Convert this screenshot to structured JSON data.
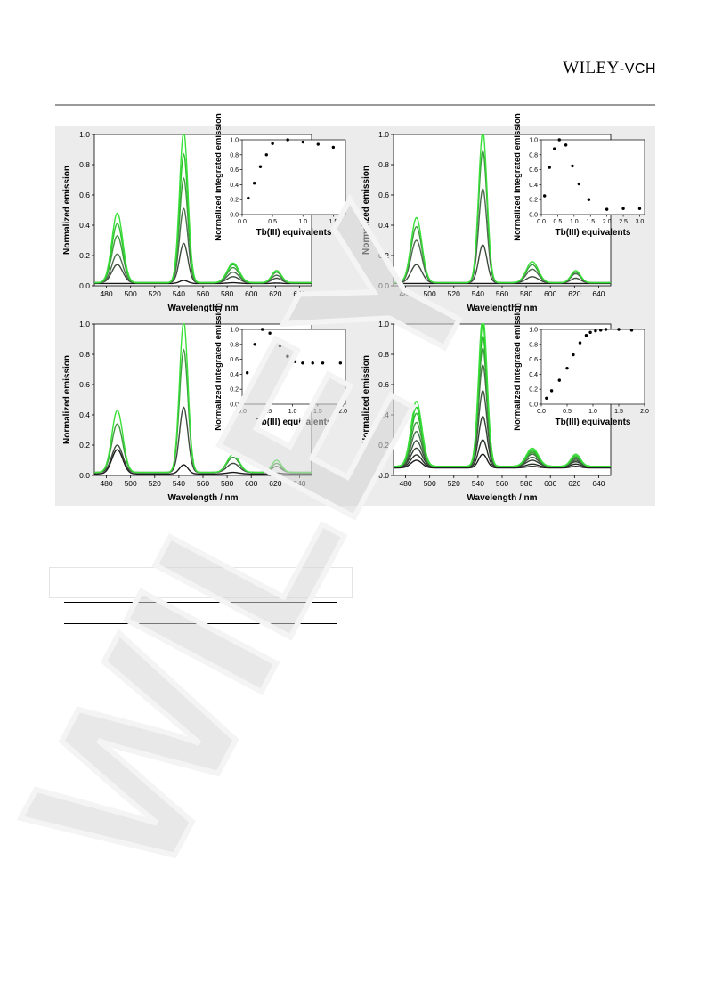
{
  "header": {
    "logo_main": "WILEY",
    "logo_suffix": "-VCH"
  },
  "watermark": {
    "text": "WILEY"
  },
  "figure": {
    "panels": [
      {
        "id": "a",
        "xlabel": "Wavelength / nm",
        "ylabel": "Normalized emission",
        "xlim": [
          470,
          650
        ],
        "xticks": [
          480,
          500,
          520,
          540,
          560,
          580,
          600,
          620,
          640
        ],
        "ylim": [
          0,
          1.0
        ],
        "yticks": [
          "0.0",
          "0.2",
          "0.4",
          "0.6",
          "0.8",
          "1.0"
        ],
        "inset": {
          "xlabel": "Tb(III) equivalents",
          "ylabel": "Normalized integrated emission",
          "xlim": [
            0,
            1.7
          ],
          "xticks": [
            "0.0",
            "0.5",
            "1.0",
            "1.5"
          ],
          "ylim": [
            0,
            1.0
          ],
          "yticks": [
            "0.0",
            "0.2",
            "0.4",
            "0.6",
            "0.8",
            "1.0"
          ]
        }
      },
      {
        "id": "b",
        "xlabel": "Wavelength / nm",
        "ylabel": "Normalized emission",
        "xlim": [
          470,
          650
        ],
        "xticks": [
          480,
          500,
          520,
          540,
          560,
          580,
          600,
          620,
          640
        ],
        "ylim": [
          0,
          1.0
        ],
        "yticks": [
          "0.0",
          "0.2",
          "0.4",
          "0.6",
          "0.8",
          "1.0"
        ],
        "inset": {
          "xlabel": "Tb(III) equivalents",
          "ylabel": "Normalized integrated emission",
          "xlim": [
            0,
            3.15
          ],
          "xticks": [
            "0.0",
            "0.5",
            "1.0",
            "1.5",
            "2.0",
            "2.5",
            "3.0"
          ],
          "ylim": [
            0,
            1.0
          ],
          "yticks": [
            "0.0",
            "0.2",
            "0.4",
            "0.6",
            "0.8",
            "1.0"
          ]
        }
      },
      {
        "id": "c",
        "xlabel": "Wavelength / nm",
        "ylabel": "Normalized emission",
        "xlim": [
          470,
          650
        ],
        "xticks": [
          480,
          500,
          520,
          540,
          560,
          580,
          600,
          620,
          640
        ],
        "ylim": [
          0,
          1.0
        ],
        "yticks": [
          "0.0",
          "0.2",
          "0.4",
          "0.6",
          "0.8",
          "1.0"
        ],
        "inset": {
          "xlabel": "Tb(III) equivalents",
          "ylabel": "Normalized integrated emission",
          "xlim": [
            0,
            2.05
          ],
          "xticks": [
            "0.0",
            "0.5",
            "1.0",
            "1.5",
            "2.0"
          ],
          "ylim": [
            0,
            1.0
          ],
          "yticks": [
            "0.0",
            "0.2",
            "0.4",
            "0.6",
            "0.8",
            "1.0"
          ]
        }
      },
      {
        "id": "d",
        "xlabel": "Wavelength / nm",
        "ylabel": "Normalized emission",
        "xlim": [
          470,
          650
        ],
        "xticks": [
          480,
          500,
          520,
          540,
          560,
          580,
          600,
          620,
          640
        ],
        "ylim": [
          0,
          1.0
        ],
        "yticks": [
          "0.0",
          "0.2",
          "0.4",
          "0.6",
          "0.8",
          "1.0"
        ],
        "inset": {
          "xlabel": "Tb(III) equivalents",
          "ylabel": "Normalized integrated emission",
          "xlim": [
            0,
            2.0
          ],
          "xticks": [
            "0.0",
            "0.5",
            "1.0",
            "1.5",
            "2.0"
          ],
          "ylim": [
            0,
            1.0
          ],
          "yticks": [
            "0.0",
            "0.2",
            "0.4",
            "0.6",
            "0.8",
            "1.0"
          ]
        }
      }
    ]
  },
  "chart_data": [
    {
      "type": "line",
      "panel": "a",
      "xlabel": "Wavelength / nm",
      "ylabel": "Normalized emission",
      "xlim": [
        470,
        650
      ],
      "ylim": [
        0,
        1.0
      ],
      "peak_centers_nm": [
        489,
        544,
        585,
        621
      ],
      "series": [
        {
          "color": "#1a1a1a",
          "peaks": [
            0.0,
            0.02,
            0.005,
            0.003
          ],
          "baseline": 0.015
        },
        {
          "color": "#3d4a3d",
          "peaks": [
            0.12,
            0.26,
            0.04,
            0.03
          ],
          "baseline": 0.02
        },
        {
          "color": "#4d6b4d",
          "peaks": [
            0.19,
            0.49,
            0.07,
            0.05
          ],
          "baseline": 0.02
        },
        {
          "color": "#3f9a3f",
          "peaks": [
            0.31,
            0.69,
            0.1,
            0.07
          ],
          "baseline": 0.02
        },
        {
          "color": "#2fc22f",
          "peaks": [
            0.39,
            0.85,
            0.12,
            0.08
          ],
          "baseline": 0.02
        },
        {
          "color": "#39e039",
          "peaks": [
            0.46,
            1.0,
            0.13,
            0.08
          ],
          "baseline": 0.02
        }
      ],
      "inset": {
        "type": "scatter",
        "xlabel": "Tb(III) equivalents",
        "ylabel": "Normalized integrated emission",
        "xlim": [
          0,
          1.7
        ],
        "ylim": [
          0,
          1.0
        ],
        "x": [
          0.1,
          0.2,
          0.3,
          0.4,
          0.5,
          0.75,
          1.0,
          1.25,
          1.5
        ],
        "y": [
          0.22,
          0.42,
          0.64,
          0.8,
          0.95,
          1.0,
          0.97,
          0.94,
          0.9
        ]
      }
    },
    {
      "type": "line",
      "panel": "b",
      "xlabel": "Wavelength / nm",
      "ylabel": "Normalized emission",
      "xlim": [
        470,
        650
      ],
      "ylim": [
        0,
        1.0
      ],
      "peak_centers_nm": [
        489,
        544,
        585,
        621
      ],
      "series": [
        {
          "color": "#1a1a1a",
          "peaks": [
            0.0,
            0.0,
            0.0,
            0.0
          ],
          "baseline": 0.015
        },
        {
          "color": "#3d4a3d",
          "peaks": [
            0.12,
            0.25,
            0.04,
            0.03
          ],
          "baseline": 0.02
        },
        {
          "color": "#4d6b4d",
          "peaks": [
            0.28,
            0.62,
            0.09,
            0.06
          ],
          "baseline": 0.02
        },
        {
          "color": "#3f9a3f",
          "peaks": [
            0.37,
            0.87,
            0.12,
            0.07
          ],
          "baseline": 0.02
        },
        {
          "color": "#39e039",
          "peaks": [
            0.43,
            1.0,
            0.14,
            0.08
          ],
          "baseline": 0.02
        }
      ],
      "inset": {
        "type": "scatter",
        "xlabel": "Tb(III) equivalents",
        "ylabel": "Normalized integrated emission",
        "xlim": [
          0,
          3.15
        ],
        "ylim": [
          0,
          1.0
        ],
        "x": [
          0.1,
          0.25,
          0.4,
          0.55,
          0.75,
          0.95,
          1.15,
          1.45,
          2.0,
          2.5,
          3.0
        ],
        "y": [
          0.25,
          0.63,
          0.88,
          1.0,
          0.93,
          0.65,
          0.41,
          0.2,
          0.07,
          0.08,
          0.08
        ]
      }
    },
    {
      "type": "line",
      "panel": "c",
      "xlabel": "Wavelength / nm",
      "ylabel": "Normalized emission",
      "xlim": [
        470,
        650
      ],
      "ylim": [
        0,
        1.0
      ],
      "peak_centers_nm": [
        489,
        544,
        585,
        621
      ],
      "series": [
        {
          "color": "#1a1a1a",
          "peaks": [
            0.16,
            0.06,
            0.01,
            0.005
          ],
          "baseline": 0.01
        },
        {
          "color": "#3d4a3d",
          "peaks": [
            0.18,
            0.43,
            0.06,
            0.04
          ],
          "baseline": 0.02
        },
        {
          "color": "#3f9a3f",
          "peaks": [
            0.32,
            0.81,
            0.1,
            0.06
          ],
          "baseline": 0.02
        },
        {
          "color": "#39e039",
          "peaks": [
            0.41,
            1.0,
            0.12,
            0.08
          ],
          "baseline": 0.02
        }
      ],
      "inset": {
        "type": "scatter",
        "xlabel": "Tb(III) equivalents",
        "ylabel": "Normalized integrated emission",
        "xlim": [
          0,
          2.05
        ],
        "ylim": [
          0,
          1.0
        ],
        "x": [
          0.1,
          0.25,
          0.4,
          0.55,
          0.75,
          0.9,
          1.05,
          1.2,
          1.4,
          1.6,
          1.95
        ],
        "y": [
          0.42,
          0.8,
          1.0,
          0.95,
          0.78,
          0.64,
          0.57,
          0.55,
          0.55,
          0.55,
          0.55
        ]
      }
    },
    {
      "type": "line",
      "panel": "d",
      "xlabel": "Wavelength / nm",
      "ylabel": "Normalized emission",
      "xlim": [
        470,
        650
      ],
      "ylim": [
        0,
        1.0
      ],
      "peak_centers_nm": [
        489,
        544,
        585,
        621
      ],
      "series": [
        {
          "color": "#1a1a1a",
          "peaks": [
            0.05,
            0.09,
            0.01,
            0.01
          ],
          "baseline": 0.05
        },
        {
          "color": "#262f26",
          "peaks": [
            0.08,
            0.18,
            0.02,
            0.02
          ],
          "baseline": 0.055
        },
        {
          "color": "#334033",
          "peaks": [
            0.12,
            0.33,
            0.04,
            0.03
          ],
          "baseline": 0.06
        },
        {
          "color": "#405840",
          "peaks": [
            0.17,
            0.5,
            0.06,
            0.04
          ],
          "baseline": 0.06
        },
        {
          "color": "#477447",
          "peaks": [
            0.23,
            0.67,
            0.08,
            0.05
          ],
          "baseline": 0.06
        },
        {
          "color": "#3f9a3f",
          "peaks": [
            0.29,
            0.78,
            0.09,
            0.06
          ],
          "baseline": 0.06
        },
        {
          "color": "#2fb52f",
          "peaks": [
            0.35,
            0.86,
            0.1,
            0.07
          ],
          "baseline": 0.06
        },
        {
          "color": "#2fcf2f",
          "peaks": [
            0.39,
            0.94,
            0.11,
            0.07
          ],
          "baseline": 0.06
        },
        {
          "color": "#39e039",
          "peaks": [
            0.43,
            1.0,
            0.12,
            0.08
          ],
          "baseline": 0.06
        }
      ],
      "inset": {
        "type": "scatter",
        "xlabel": "Tb(III) equivalents",
        "ylabel": "Normalized integrated emission",
        "xlim": [
          0,
          2.0
        ],
        "ylim": [
          0,
          1.0
        ],
        "x": [
          0.1,
          0.2,
          0.35,
          0.5,
          0.62,
          0.75,
          0.87,
          0.95,
          1.05,
          1.15,
          1.25,
          1.5,
          1.75
        ],
        "y": [
          0.08,
          0.18,
          0.32,
          0.48,
          0.66,
          0.82,
          0.92,
          0.96,
          0.98,
          0.99,
          1.0,
          1.0,
          0.99
        ]
      }
    }
  ]
}
